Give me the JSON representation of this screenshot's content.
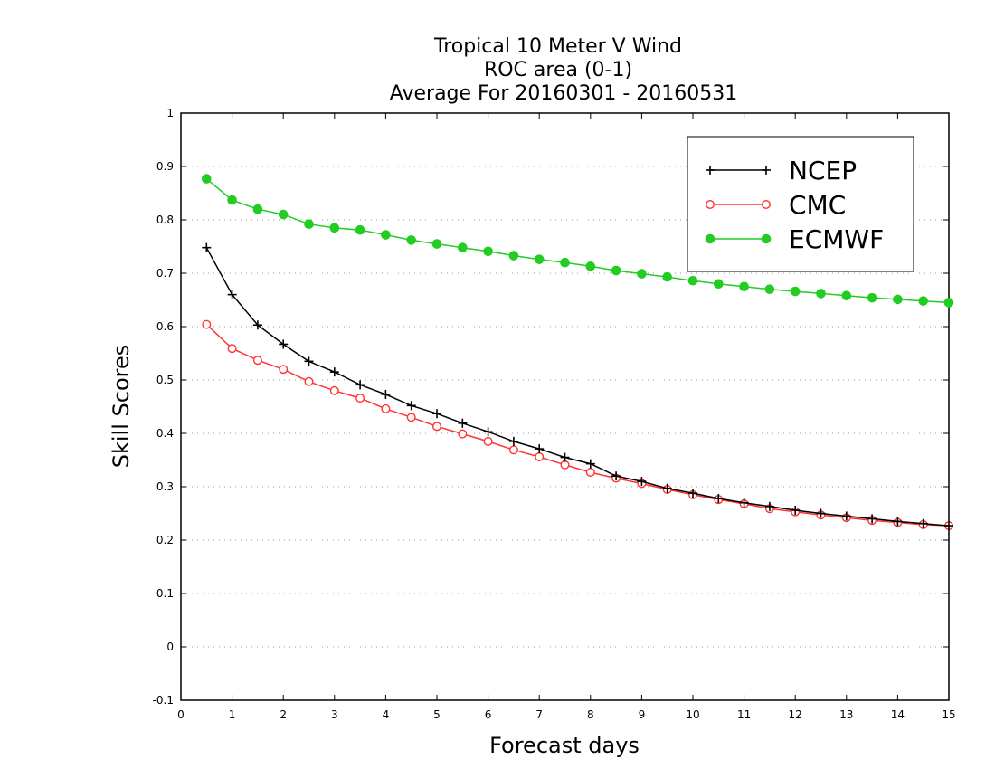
{
  "chart_data": {
    "type": "line",
    "title": [
      "Tropical 10 Meter V Wind",
      "ROC area (0-1)",
      "Average For 20160301 - 20160531"
    ],
    "xlabel": "Forecast days",
    "ylabel": "Skill Scores",
    "xlim": [
      0,
      15
    ],
    "ylim": [
      -0.1,
      1
    ],
    "xticks": [
      0,
      1,
      2,
      3,
      4,
      5,
      6,
      7,
      8,
      9,
      10,
      11,
      12,
      13,
      14,
      15
    ],
    "xtick_labels": [
      "0",
      "1",
      "2",
      "3",
      "4",
      "5",
      "6",
      "7",
      "8",
      "9",
      "10",
      "11",
      "12",
      "13",
      "14",
      "15"
    ],
    "yticks": [
      -0.1,
      0,
      0.1,
      0.2,
      0.3,
      0.4,
      0.5,
      0.6,
      0.7,
      0.8,
      0.9,
      1
    ],
    "ytick_labels": [
      "-0.1",
      "0",
      "0.1",
      "0.2",
      "0.3",
      "0.4",
      "0.5",
      "0.6",
      "0.7",
      "0.8",
      "0.9",
      "1"
    ],
    "grid": "horizontal-dotted",
    "legend_position": "top-right",
    "x": [
      0.5,
      1,
      1.5,
      2,
      2.5,
      3,
      3.5,
      4,
      4.5,
      5,
      5.5,
      6,
      6.5,
      7,
      7.5,
      8,
      8.5,
      9,
      9.5,
      10,
      10.5,
      11,
      11.5,
      12,
      12.5,
      13,
      13.5,
      14,
      14.5,
      15
    ],
    "series": [
      {
        "name": "NCEP",
        "color": "#000000",
        "marker": "plus",
        "values": [
          0.748,
          0.66,
          0.603,
          0.567,
          0.535,
          0.515,
          0.491,
          0.473,
          0.452,
          0.437,
          0.419,
          0.403,
          0.385,
          0.371,
          0.355,
          0.343,
          0.32,
          0.31,
          0.297,
          0.288,
          0.278,
          0.27,
          0.263,
          0.256,
          0.25,
          0.245,
          0.24,
          0.235,
          0.231,
          0.227
        ]
      },
      {
        "name": "CMC",
        "color": "#ff3333",
        "marker": "open-circle",
        "values": [
          0.604,
          0.559,
          0.537,
          0.52,
          0.497,
          0.48,
          0.466,
          0.446,
          0.43,
          0.413,
          0.399,
          0.385,
          0.369,
          0.356,
          0.341,
          0.327,
          0.316,
          0.306,
          0.295,
          0.285,
          0.276,
          0.268,
          0.259,
          0.253,
          0.247,
          0.242,
          0.237,
          0.233,
          0.229,
          0.227
        ]
      },
      {
        "name": "ECMWF",
        "color": "#22cc22",
        "marker": "filled-circle",
        "values": [
          0.877,
          0.837,
          0.82,
          0.81,
          0.792,
          0.785,
          0.781,
          0.772,
          0.762,
          0.755,
          0.748,
          0.741,
          0.733,
          0.726,
          0.72,
          0.713,
          0.705,
          0.699,
          0.693,
          0.686,
          0.68,
          0.675,
          0.67,
          0.666,
          0.662,
          0.658,
          0.654,
          0.651,
          0.648,
          0.645
        ]
      }
    ]
  }
}
